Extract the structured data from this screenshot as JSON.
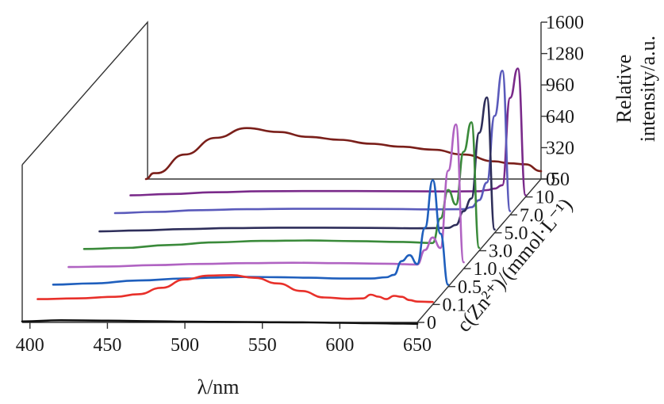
{
  "chart_data": {
    "type": "line",
    "title": "",
    "xlabel": "λ/nm",
    "ylabel_lines": [
      "Relative",
      "intensity/a.u."
    ],
    "zlabel": "c(Zn²⁺)/(mmol·L⁻¹)",
    "x_ticks": [
      400,
      450,
      500,
      550,
      600,
      650
    ],
    "y_ticks": [
      0,
      320,
      640,
      960,
      1280,
      1600
    ],
    "z_ticks": [
      "0",
      "0.1",
      "0.5",
      "1.0",
      "3.0",
      "5.0",
      "7.0",
      "10",
      "50"
    ],
    "xlim": [
      395,
      650
    ],
    "ylim": [
      0,
      1600
    ],
    "series": [
      {
        "name": "0",
        "color": "#111111",
        "x": [
          395,
          420,
          450,
          480,
          500,
          520,
          540,
          560,
          580,
          600,
          620,
          640,
          650
        ],
        "y": [
          10,
          22,
          18,
          12,
          8,
          6,
          4,
          2,
          0,
          -4,
          -8,
          -12,
          -14
        ]
      },
      {
        "name": "0.1",
        "color": "#e8302a",
        "x": [
          395,
          420,
          445,
          460,
          475,
          490,
          505,
          520,
          535,
          550,
          565,
          580,
          595,
          605,
          610,
          615,
          620,
          625,
          630,
          635,
          640,
          650
        ],
        "y": [
          55,
          62,
          78,
          105,
          170,
          255,
          295,
          300,
          272,
          215,
          138,
          72,
          58,
          62,
          100,
          80,
          55,
          88,
          78,
          45,
          30,
          26
        ]
      },
      {
        "name": "0.5",
        "color": "#1f5fbd",
        "x": [
          395,
          420,
          450,
          480,
          500,
          520,
          540,
          560,
          580,
          600,
          610,
          615,
          620,
          625,
          630,
          635,
          640,
          645,
          650
        ],
        "y": [
          20,
          32,
          62,
          82,
          92,
          98,
          96,
          90,
          82,
          82,
          95,
          120,
          260,
          320,
          230,
          600,
          1085,
          540,
          18
        ]
      },
      {
        "name": "1.0",
        "color": "#b063c2",
        "x": [
          395,
          420,
          450,
          480,
          510,
          540,
          570,
          600,
          620,
          625,
          630,
          635,
          640,
          645,
          650
        ],
        "y": [
          16,
          22,
          36,
          48,
          56,
          60,
          56,
          50,
          42,
          190,
          318,
          210,
          1000,
          1470,
          65
        ]
      },
      {
        "name": "3.0",
        "color": "#3a8a3a",
        "x": [
          395,
          420,
          450,
          480,
          510,
          540,
          570,
          600,
          620,
          625,
          630,
          635,
          640,
          645,
          650
        ],
        "y": [
          18,
          28,
          58,
          86,
          100,
          104,
          98,
          90,
          78,
          330,
          620,
          470,
          1010,
          1310,
          30
        ]
      },
      {
        "name": "5.0",
        "color": "#2e2e5a",
        "x": [
          395,
          420,
          450,
          480,
          510,
          540,
          570,
          600,
          620,
          625,
          630,
          635,
          640,
          645,
          650
        ],
        "y": [
          14,
          24,
          38,
          48,
          52,
          52,
          50,
          46,
          50,
          80,
          220,
          350,
          1020,
          1380,
          34
        ]
      },
      {
        "name": "7.0",
        "color": "#5a5abb",
        "x": [
          395,
          420,
          450,
          480,
          510,
          540,
          570,
          600,
          620,
          625,
          630,
          635,
          640,
          645,
          650
        ],
        "y": [
          18,
          30,
          48,
          58,
          62,
          62,
          60,
          56,
          58,
          78,
          150,
          330,
          1010,
          1470,
          38
        ]
      },
      {
        "name": "10",
        "color": "#7a2a8a",
        "x": [
          395,
          420,
          450,
          480,
          510,
          540,
          570,
          600,
          620,
          625,
          630,
          635,
          640,
          645,
          650
        ],
        "y": [
          16,
          30,
          48,
          58,
          60,
          60,
          58,
          56,
          58,
          70,
          85,
          120,
          1010,
          1310,
          18
        ]
      },
      {
        "name": "50",
        "color": "#7a1f1a",
        "x": [
          395,
          400,
          402,
          420,
          440,
          460,
          480,
          500,
          520,
          540,
          560,
          580,
          600,
          620,
          630,
          640,
          650
        ],
        "y": [
          0,
          60,
          60,
          250,
          420,
          520,
          480,
          430,
          400,
          360,
          330,
          300,
          250,
          180,
          160,
          150,
          80
        ]
      }
    ]
  }
}
